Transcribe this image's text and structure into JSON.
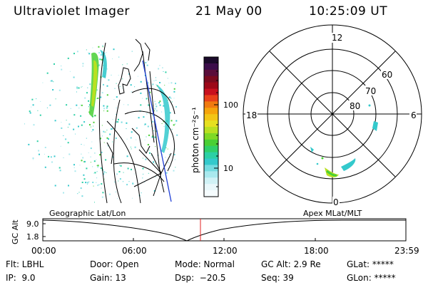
{
  "header": {
    "title": "Ultraviolet Imager",
    "date": "21 May 00",
    "time": "10:25:09 UT"
  },
  "colorbar": {
    "label": "photon cm⁻²s⁻¹",
    "ticks": [
      "100",
      "10"
    ],
    "colors_top_to_bottom": [
      "#1a0a2a",
      "#3b0d4a",
      "#5a0d3a",
      "#7a0a1e",
      "#9c0818",
      "#c8101e",
      "#e8401a",
      "#f07a10",
      "#f5a40c",
      "#f2c516",
      "#e6e020",
      "#b9e021",
      "#7fd925",
      "#49cf35",
      "#2fcf6a",
      "#2bd0a5",
      "#34c9cc",
      "#74dbe0",
      "#a9e9ee",
      "#d0f2f6",
      "#e9f8fb",
      "#f6fcfe"
    ]
  },
  "polar": {
    "labels": {
      "top": "12",
      "right": "6",
      "left": "18",
      "bottom": "0"
    },
    "lat_labels": [
      "60",
      "70",
      "80"
    ]
  },
  "timeline": {
    "left_label": "Geographic Lat/Lon",
    "right_label": "Apex MLat/MLT",
    "y_axis_title": "GC Alt",
    "y_ticks": [
      "9.0",
      "1.8"
    ],
    "x_ticks": [
      "00:00",
      "06:00",
      "12:00",
      "18:00",
      "23:59"
    ]
  },
  "footer": {
    "flt": "Flt: LBHL",
    "ip": "IP:  9.0",
    "door": "Door: Open",
    "gain": "Gain: 13",
    "mode": "Mode: Normal",
    "dsp": "Dsp:  −20.5",
    "gcalt": "GC Alt: 2.9 Re",
    "seq": "Seq: 39",
    "glat": "GLat: *****",
    "glon": "GLon: *****"
  }
}
